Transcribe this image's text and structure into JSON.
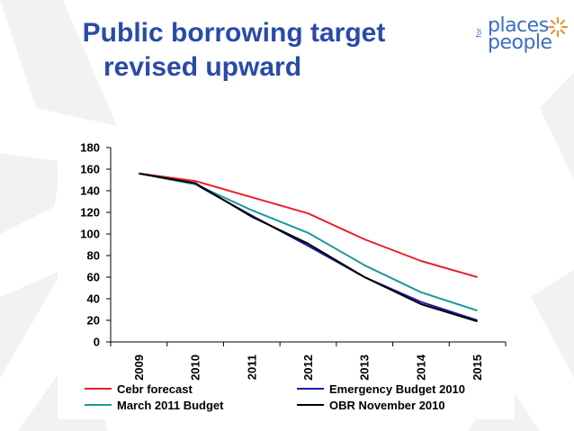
{
  "slide": {
    "title_line1": "Public borrowing target",
    "title_line2": "revised upward"
  },
  "logo": {
    "word1": "places",
    "word2": "people",
    "small": "for",
    "color": "#3a6fc4",
    "accent": "#e8923a"
  },
  "chart_data": {
    "type": "line",
    "title": "",
    "xlabel": "",
    "ylabel": "",
    "x": [
      "2009",
      "2010",
      "2011",
      "2012",
      "2013",
      "2014",
      "2015"
    ],
    "ylim": [
      0,
      180
    ],
    "yticks": [
      0,
      20,
      40,
      60,
      80,
      100,
      120,
      140,
      160,
      180
    ],
    "grid": false,
    "legend_position": "bottom",
    "series": [
      {
        "name": "Cebr forecast",
        "color": "#e8202a",
        "values": [
          156,
          149,
          134,
          119,
          95,
          75,
          60
        ]
      },
      {
        "name": "Emergency Budget 2010",
        "color": "#1c1ca8",
        "values": [
          156,
          146,
          117,
          89,
          60,
          37,
          20
        ]
      },
      {
        "name": "March 2011 Budget",
        "color": "#1a9a9a",
        "values": [
          156,
          146,
          122,
          101,
          71,
          46,
          29
        ]
      },
      {
        "name": "OBR November 2010",
        "color": "#000000",
        "values": [
          156,
          147,
          116,
          91,
          60,
          35,
          19
        ]
      }
    ]
  }
}
